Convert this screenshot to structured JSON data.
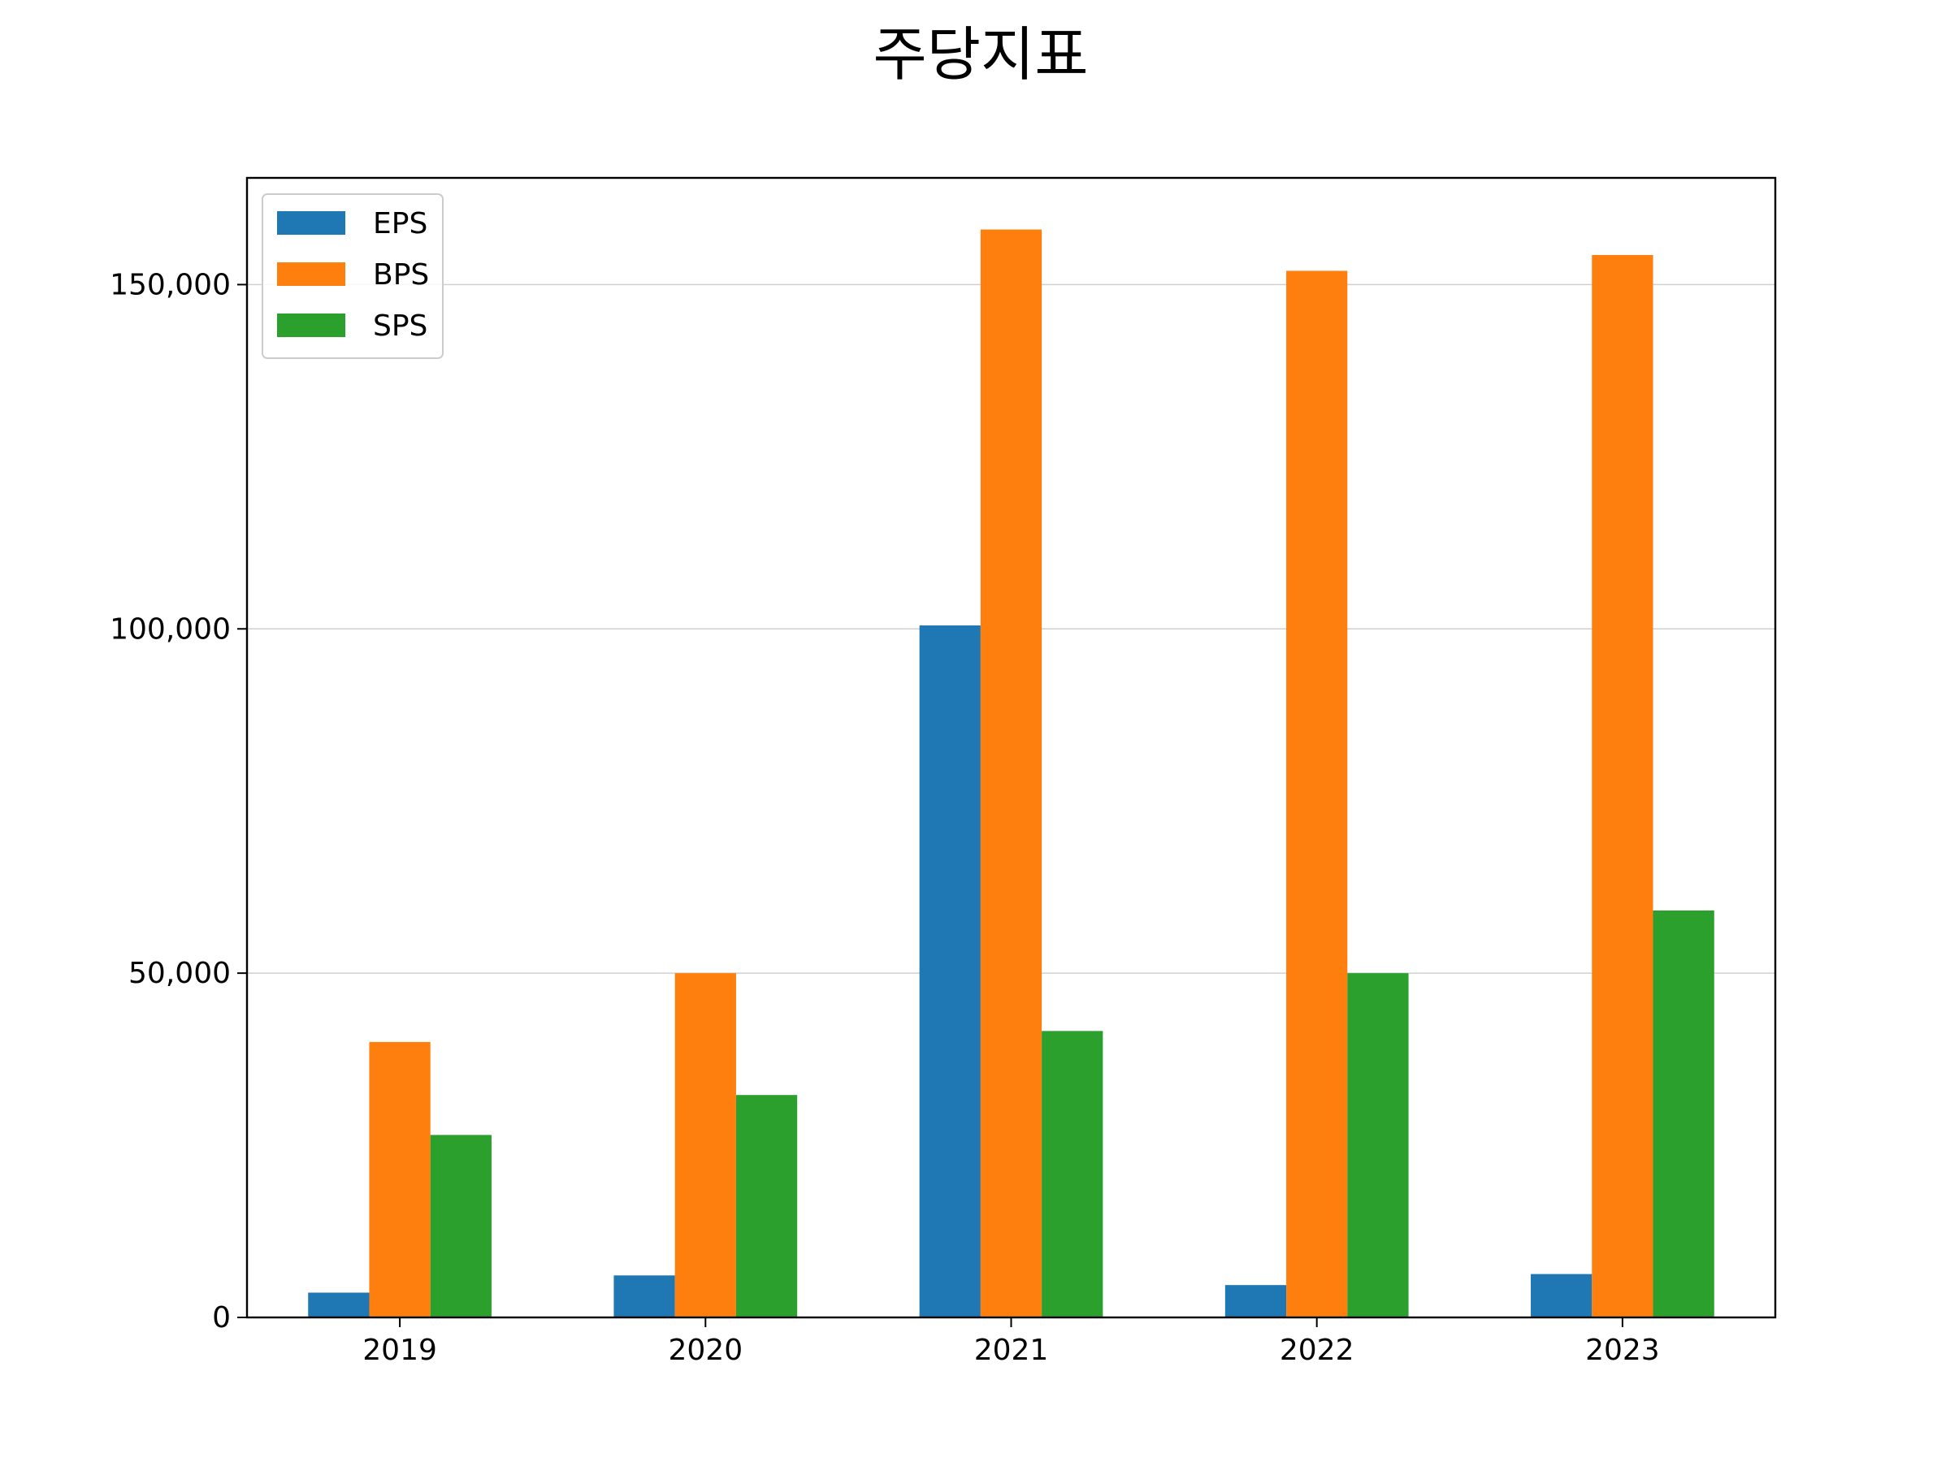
{
  "chart_data": {
    "type": "bar",
    "title": "주당지표",
    "xlabel": "",
    "ylabel": "",
    "categories": [
      "2019",
      "2020",
      "2021",
      "2022",
      "2023"
    ],
    "series": [
      {
        "name": "EPS",
        "color": "#1f77b4",
        "values": [
          3600,
          6100,
          100500,
          4700,
          6300
        ]
      },
      {
        "name": "BPS",
        "color": "#ff7f0e",
        "values": [
          40000,
          50000,
          158000,
          152000,
          154300
        ]
      },
      {
        "name": "SPS",
        "color": "#2ca02c",
        "values": [
          26500,
          32300,
          41600,
          50000,
          59100
        ]
      }
    ],
    "ylim": [
      0,
      165500
    ],
    "yticks": [
      0,
      50000,
      100000,
      150000
    ],
    "ytick_labels": [
      "0",
      "50,000",
      "100,000",
      "150,000"
    ],
    "grid": "y",
    "legend_position": "top-left"
  }
}
